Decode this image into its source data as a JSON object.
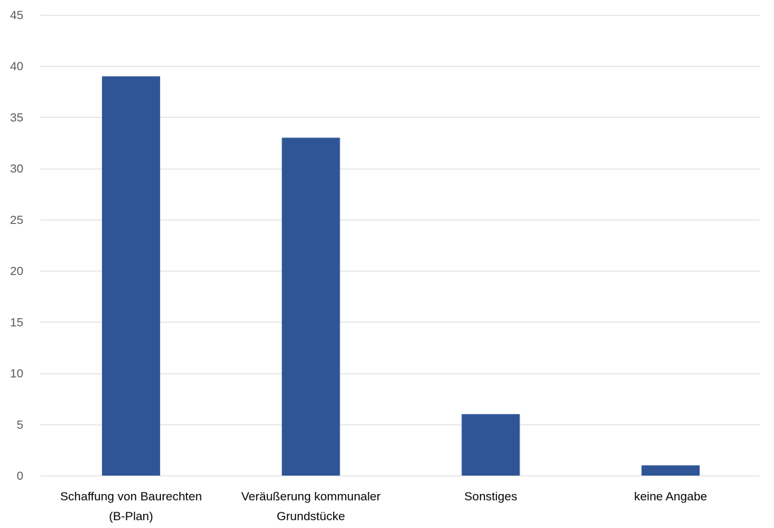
{
  "chart_data": {
    "type": "bar",
    "title": "",
    "xlabel": "",
    "ylabel": "",
    "categories": [
      [
        "Schaffung von Baurechten",
        "(B-Plan)"
      ],
      [
        "Veräußerung kommunaler",
        "Grundstücke"
      ],
      [
        "Sonstiges"
      ],
      [
        "keine Angabe"
      ]
    ],
    "values": [
      39,
      33,
      6,
      1
    ],
    "ylim": [
      0,
      45
    ],
    "yticks": [
      0,
      5,
      10,
      15,
      20,
      25,
      30,
      35,
      40,
      45
    ],
    "grid": true,
    "legend": "none",
    "colors": {
      "bar": "#2f5597",
      "grid": "#d9d9d9",
      "tick_text": "#595959",
      "category_text": "#000000"
    }
  }
}
